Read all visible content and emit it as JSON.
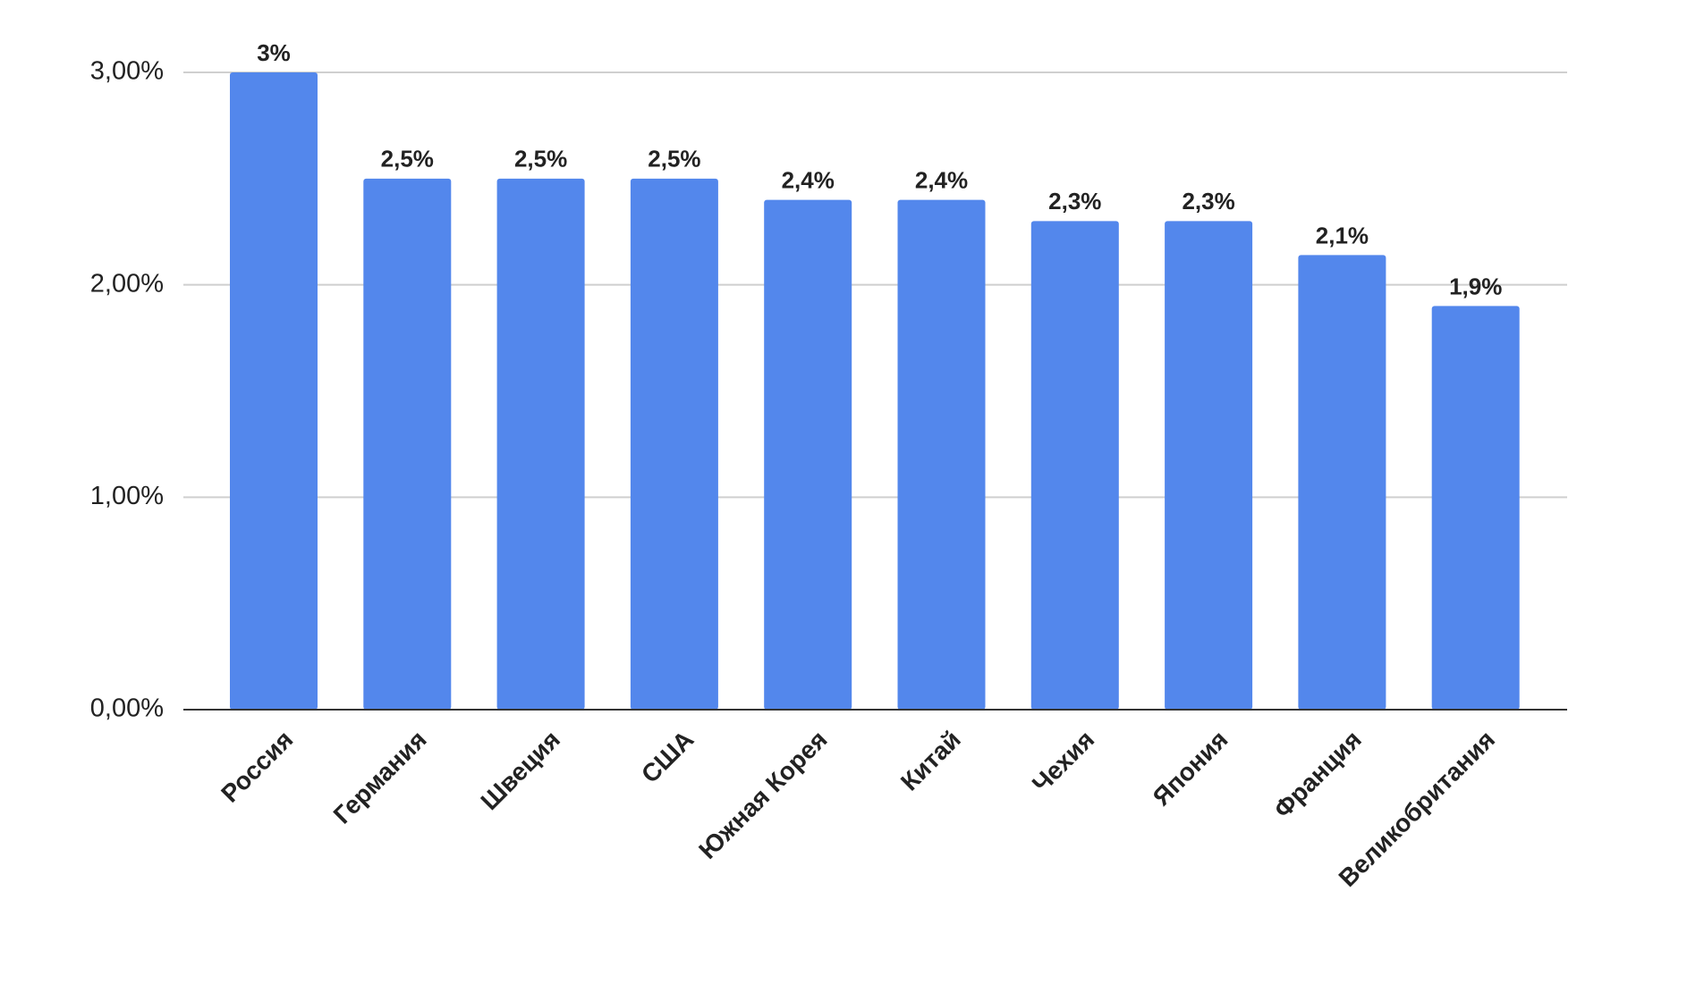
{
  "chart_data": {
    "type": "bar",
    "categories": [
      "Россия",
      "Германия",
      "Швеция",
      "США",
      "Южная Корея",
      "Китай",
      "Чехия",
      "Япония",
      "Франция",
      "Великобритания"
    ],
    "values": [
      3,
      2.5,
      2.5,
      2.5,
      2.4,
      2.4,
      2.3,
      2.3,
      2.14,
      1.9
    ],
    "value_labels": [
      "3%",
      "2,5%",
      "2,5%",
      "2,5%",
      "2,4%",
      "2,4%",
      "2,3%",
      "2,3%",
      "2,1%",
      "1,9%"
    ],
    "color": "#5387ec",
    "ylim": [
      0,
      3
    ],
    "yticks": [
      {
        "value": 0,
        "label": "0,00%"
      },
      {
        "value": 1,
        "label": "1,00%"
      },
      {
        "value": 2,
        "label": "2,00%"
      },
      {
        "value": 3,
        "label": "3,00%"
      }
    ],
    "grid": true
  }
}
